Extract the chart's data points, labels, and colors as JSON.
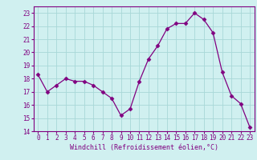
{
  "x": [
    0,
    1,
    2,
    3,
    4,
    5,
    6,
    7,
    8,
    9,
    10,
    11,
    12,
    13,
    14,
    15,
    16,
    17,
    18,
    19,
    20,
    21,
    22,
    23
  ],
  "y": [
    18.3,
    17.0,
    17.5,
    18.0,
    17.8,
    17.8,
    17.5,
    17.0,
    16.5,
    15.2,
    15.7,
    17.8,
    19.5,
    20.5,
    21.8,
    22.2,
    22.2,
    23.0,
    22.5,
    21.5,
    18.5,
    16.7,
    16.1,
    14.3
  ],
  "line_color": "#800080",
  "marker": "D",
  "marker_size": 2.5,
  "bg_color": "#d0f0f0",
  "grid_color": "#a8d8d8",
  "xlabel": "Windchill (Refroidissement éolien,°C)",
  "xlim_min": -0.5,
  "xlim_max": 23.5,
  "ylim_min": 14,
  "ylim_max": 23.5,
  "yticks": [
    14,
    15,
    16,
    17,
    18,
    19,
    20,
    21,
    22,
    23
  ],
  "xticks": [
    0,
    1,
    2,
    3,
    4,
    5,
    6,
    7,
    8,
    9,
    10,
    11,
    12,
    13,
    14,
    15,
    16,
    17,
    18,
    19,
    20,
    21,
    22,
    23
  ],
  "tick_color": "#800080",
  "label_fontsize": 5.5,
  "xlabel_fontsize": 6.0
}
